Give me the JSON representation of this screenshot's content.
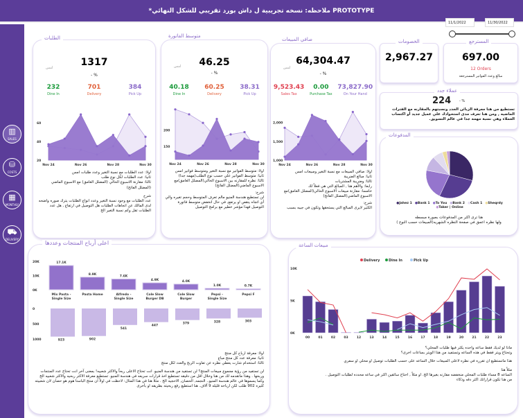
{
  "header": {
    "title": "*ملاحظه: نسخه تجريبية ل داش بورد تقريبي للشكل النهائي PROTOTYPE"
  },
  "sidebar": [
    {
      "label": "SALES",
      "icon": "bar-chart-icon"
    },
    {
      "label": "COSTS",
      "icon": "coins-icon"
    },
    {
      "label": "MONTHLY",
      "icon": "calendar-icon"
    },
    {
      "label": "DELIVERY",
      "icon": "truck-icon"
    }
  ],
  "filters": {
    "start_date": "11/1/2022",
    "end_date": "11/30/2022"
  },
  "orders": {
    "title": "الطلبات",
    "value": "1317",
    "pct": "- %",
    "prev": "امس",
    "dine_in": "232",
    "delivery": "701",
    "pickup": "384",
    "dine_in_label": "Dine In",
    "delivery_label": "Delivery",
    "pickup_label": "Pick Up",
    "notes": [
      "اولا: عدد الطلبات مع نسبة التغير وعدد طلبات امس",
      "ثانيا: عدد الطلبات لكل نوع طلب",
      "ثالثا: مقارنة الاسبوع الحالي (المضلل الغامق) مع الاسبوع الماضي (المضلل الفاتح)"
    ],
    "explain_title": "شرح",
    "explain": "عدد الطلبات مع وجود نسبة التغير وعدد انواع الطلبات يترك صوره واضحه لدى المالك عن اتجاهات الطلبات هل التوصيل في ارتفاع , هل عدد الطلبات تقل وكم نسبة التغير الخ"
  },
  "avg_invoice": {
    "title": "متوسط الفاتورة",
    "value": "46.25",
    "pct": "- %",
    "prev": "امس",
    "dine_in": "40.18",
    "delivery": "60.25",
    "pickup": "38.31",
    "dine_in_label": "Dine In",
    "delivery_label": "Delivery",
    "pickup_label": "Pick Up",
    "notes": [
      "اولا: متوسط الفواتير مع نسبة التغير ومتوسط فواتير امس",
      "ثانيا: متوسط الفواتير علي حسب نوع الطلب(مهمه جدا)",
      "ثالثا: نظره للمقارنه بين الاسبوع الحالي(المضلل الغامق)مع الاسبوع الماضي(المضلل الفاتح)"
    ],
    "explain_title": "شرح:",
    "explain": "لن تستطيع هندسة المنيو مالم تعرف المتوسط وحجم تغيره والي أي اتجاه ينقص او يرتفع, في حال انخفض متوسط فاتورة التوصيل فهذا مؤشر خطير مع برامج التوصيل"
  },
  "net_sales": {
    "title": "صافي المبيعات",
    "value": "64,304.47",
    "pct": "- %",
    "prev": "امس",
    "sales_tax": "9,523.43",
    "purchase_tax": "0.00",
    "on_hand": "73,827.90",
    "sales_tax_label": "Sales Tax",
    "purchase_tax_label": "Purchase Tax",
    "on_hand_label": "On Your Hand",
    "notes": [
      "اولا: صافي المبيعات مع نسبة التغير ومبيعات امس",
      "ثانيا: مبالغ الضريبة",
      "ثالثا: وضريبة المشتريات",
      "رابعا: والأهم هنا , المبالغ التي هي فعلاً لك",
      "خامسا: مقارنة مبيعات الاسبوع الحالي(المضلل الغامق)مع الاسبوع الماضي(المضلل الفاتح)"
    ],
    "explain_title": "شرح:",
    "explain": "الكثير لايرى المبالغ التي يستحقها وتكون في جيبه بسبب"
  },
  "discounts": {
    "title": "الخصومات",
    "value": "2,967.27"
  },
  "returns": {
    "title": "المسترجع",
    "value": "697.00",
    "orders": "12 Orders",
    "caption": "مبالغ وعدد الفواتير المسترجعة"
  },
  "new_customers": {
    "title": "عملاء جدد",
    "value": "224",
    "pct": "- %",
    "text": "تستطيع من هنا معرفة الزبائن الجدد ونسبتهم بالمقارنه مع الفترات الماضيه , ومن هنا تعرف مدى استحواذك علي عميل جديد أو اكتساب العملاء وهي نسبة مهمه جدا في عالم التسويق."
  },
  "payments": {
    "title": "المدفوعات",
    "text": [
      "هنا ترى اكثر من المدفوعات بصورة مبسطه",
      "ولها نظره اعمق في صفحة النظره الشهريه(المبيعات حسب النوع )"
    ]
  },
  "products": {
    "title": "اعلى أرباح المنتجات وعددها",
    "notes": [
      "اولا: معرفة ارباح كل منتج",
      "ثانيا: معرفة عدد كل منتج مباع",
      "ثالثا: استخدام شارت يعطي نظره عن تفاوت الربح والعدد لكل منتج"
    ],
    "explain": "لن تستفيد من رؤية مجموع مبيعات المنتج؟ لن تستفيد من هندسة المنيو. انت تحتاج الاعلى ربحاً والاكثر شعبيه! بمعنى آخر انت تحتاج عدد المنتجات وربحها . وهذا ماتقدمه لك من هنا وخلال اقل من دقيقه تستطيع اخذ قرارات سريعه في هندسة المنيو. تستطيع معرفة الاكثر ربحيه والاكثر شعبيه الخ وكما يسموها في عالم هندسة المنيو.. النجمه, الحصان, الاحجيه الخ . مثلا هنا في هذا المثال: لاحظت في اولاً ان منتج الباستا هوم هو حصان لان شعبيته كثيره 902 طلب لكن ارباحه قليله 9 آلاف. هنا استطيع رفع ربحيته بطريقه او بأخرى"
  },
  "hourly": {
    "title": "مبيعات الساعة",
    "text": [
      "ماذا لو لديك فقط ساعه واحده يكثر فيها طلبات المحلي؟",
      "وتحتاج ويتر فقط في هذه الساعه وتستفيد من هذا الويتر بساعات اخرى؟",
      "هذا ماتستطيع ان تقرره في نظره لاعلى المبيعات خلال الساعه على حسب الطلبات توصيل او محلي او سفري",
      "مثلاً هنا",
      "الساعه 8 مساء طلبات المحلي منخفضه مقارنه بغيرها الخ. او مثلاً , احتاج سائقين اكثر في ساعه محدده لطلبات التوصيل .",
      "من هنا تكون قراراتك اكثر دقه وذكاء"
    ]
  },
  "colors": {
    "primary": "#5b3d99",
    "dark_area": "#9575cd",
    "light_area": "#ece6f7",
    "delivery": "#e04050",
    "dine_in": "#1a9a3a",
    "pickup": "#a8ccf5",
    "bar": "#563d91"
  },
  "chart_data": [
    {
      "type": "area",
      "id": "orders",
      "x": [
        "Nov 24",
        "",
        "Nov 26",
        "",
        "Nov 28",
        "",
        "Nov 30"
      ],
      "ticks": [
        20,
        40,
        60
      ],
      "ylim": [
        20,
        75
      ],
      "series": [
        {
          "values": [
            37,
            43,
            69,
            35,
            47,
            25,
            35
          ]
        },
        {
          "values": [
            35,
            33,
            31,
            26,
            35,
            69,
            45
          ]
        }
      ]
    },
    {
      "type": "area",
      "id": "avg",
      "x": [
        "Nov 24",
        "",
        "Nov 26",
        "",
        "Nov 28",
        "",
        "Nov 30"
      ],
      "ticks": [
        150,
        200
      ],
      "ylim": [
        110,
        270
      ],
      "series": [
        {
          "values": [
            134,
            122,
            152,
            233,
            137,
            173,
            163
          ]
        },
        {
          "values": [
            262,
            247,
            221,
            173,
            186,
            193,
            134
          ]
        }
      ]
    },
    {
      "type": "area",
      "id": "net",
      "x": [
        "Nov 24",
        "",
        "Nov 26",
        "",
        "Nov 28",
        "",
        "Nov 30"
      ],
      "ticks": [
        1000,
        1500,
        2000
      ],
      "ylim": [
        1000,
        2400
      ],
      "series": [
        {
          "values": [
            1090,
            1420,
            2200,
            2040,
            1540,
            1160,
            1510
          ]
        },
        {
          "values": [
            1860,
            1620,
            1650,
            1150,
            1550,
            2280,
            1690
          ]
        }
      ]
    },
    {
      "type": "pie",
      "id": "payments",
      "labels": [
        "Jahez 1",
        "Bank 1",
        "To You",
        "Bank 2",
        "Cash 1",
        "Sheqrdy",
        "Taker | Online"
      ],
      "values": [
        29,
        28,
        21,
        10,
        7,
        3,
        2
      ],
      "colors": [
        "#3a2765",
        "#563d91",
        "#9575cd",
        "#c5b6e3",
        "#e2dcef",
        "#eedc9a",
        "#c49ad8"
      ]
    },
    {
      "type": "bar",
      "id": "products",
      "categories": [
        "Mix Pasta - Single Size",
        "Pasta Home",
        "Alfredo - Single Size",
        "Cole Slow Burger DB",
        "Cole Slow Burger",
        "Pepsi - Single Size",
        "Pepsi F"
      ],
      "profit": [
        17.1,
        8.9,
        7.6,
        4.9,
        4.0,
        1.0,
        0.7
      ],
      "profit_labels": [
        "17.1K",
        "8.9K",
        "7.6K",
        "4.9K",
        "4.0K",
        "1.0K",
        "0.7K"
      ],
      "profit_ticks": [
        "20K",
        "10K",
        "0K"
      ],
      "count": [
        923,
        902,
        541,
        447,
        379,
        328,
        303
      ],
      "count_ticks": [
        "0",
        "500",
        "1000"
      ]
    },
    {
      "type": "bar+line",
      "id": "hourly",
      "categories": [
        "00",
        "01",
        "02",
        "03",
        "12",
        "13",
        "14",
        "15",
        "16",
        "17",
        "18",
        "19",
        "20",
        "21",
        "22",
        "23"
      ],
      "ticks": [
        "0K",
        "5K",
        "10K"
      ],
      "ylim": [
        0,
        10
      ],
      "bars": [
        5.7,
        4.8,
        3.6,
        0.05,
        0.05,
        2.1,
        1.6,
        1.8,
        2.7,
        1.5,
        3.1,
        4.8,
        6.6,
        7.9,
        8.8,
        7.2
      ],
      "series": [
        {
          "name": "Delivery",
          "values": [
            6.7,
            4.7,
            4.3,
            0,
            null,
            3.1,
            2.8,
            2.3,
            3.1,
            1.8,
            3.3,
            5.3,
            8.5,
            8.3,
            9.9,
            8.2
          ]
        },
        {
          "name": "Dine In",
          "values": [
            1.6,
            2.3,
            1.3,
            null,
            0.1,
            0.4,
            0.2,
            0.4,
            0.4,
            0.4,
            0.8,
            1.6,
            0.6,
            2.3,
            2.0,
            2.1
          ]
        },
        {
          "name": "Pick Up",
          "values": [
            2.0,
            1.7,
            1.2,
            null,
            null,
            0.5,
            null,
            0.5,
            1.4,
            0.8,
            1.3,
            1.8,
            2.8,
            3.6,
            3.9,
            2.7
          ]
        }
      ]
    }
  ]
}
